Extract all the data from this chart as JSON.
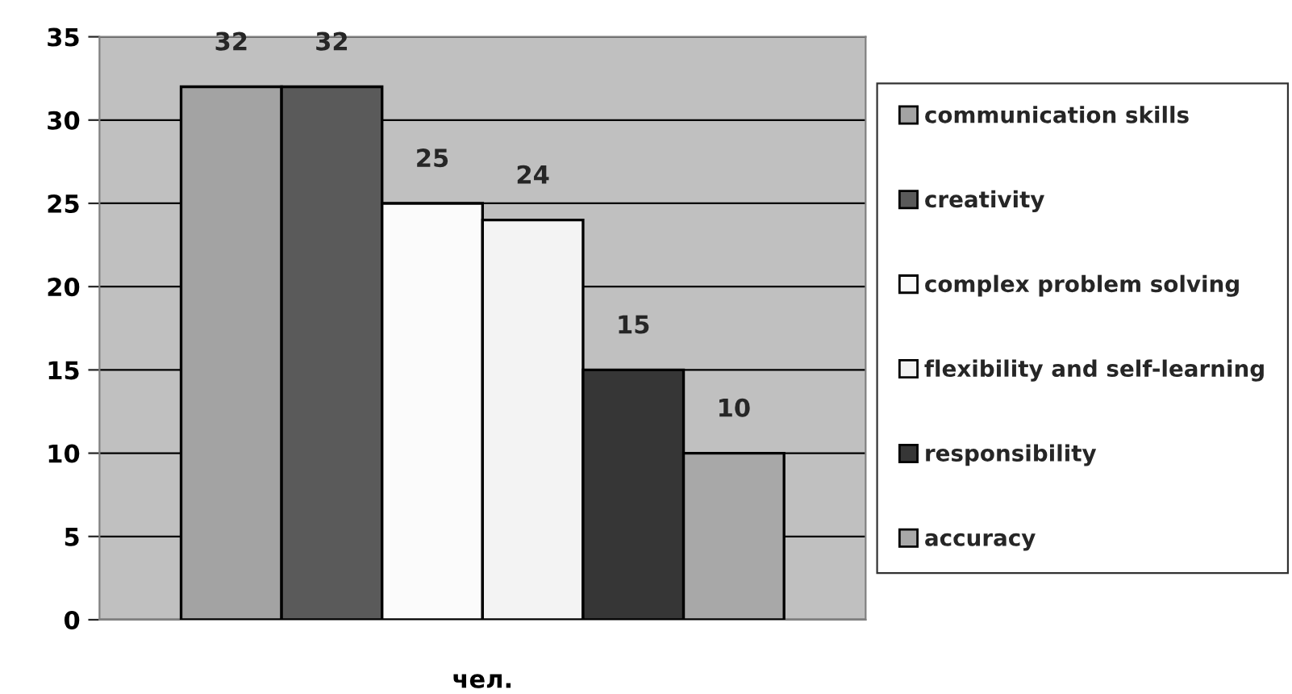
{
  "chart_data": {
    "type": "bar",
    "categories": [
      "чел."
    ],
    "series": [
      {
        "name": "communication skills",
        "color": "#a3a3a3",
        "values": [
          32
        ]
      },
      {
        "name": "creativity",
        "color": "#5a5a5a",
        "values": [
          32
        ]
      },
      {
        "name": "complex problem solving",
        "color": "#fbfbfb",
        "values": [
          25
        ]
      },
      {
        "name": "flexibility and self-learning",
        "color": "#f3f3f3",
        "values": [
          24
        ]
      },
      {
        "name": "responsibility",
        "color": "#363636",
        "values": [
          15
        ]
      },
      {
        "name": "accuracy",
        "color": "#a8a8a8",
        "values": [
          10
        ]
      }
    ],
    "ylim": [
      0,
      35
    ],
    "yticks": [
      0,
      5,
      10,
      15,
      20,
      25,
      30,
      35
    ],
    "grid": "y",
    "legend": "right",
    "data_labels": true
  }
}
